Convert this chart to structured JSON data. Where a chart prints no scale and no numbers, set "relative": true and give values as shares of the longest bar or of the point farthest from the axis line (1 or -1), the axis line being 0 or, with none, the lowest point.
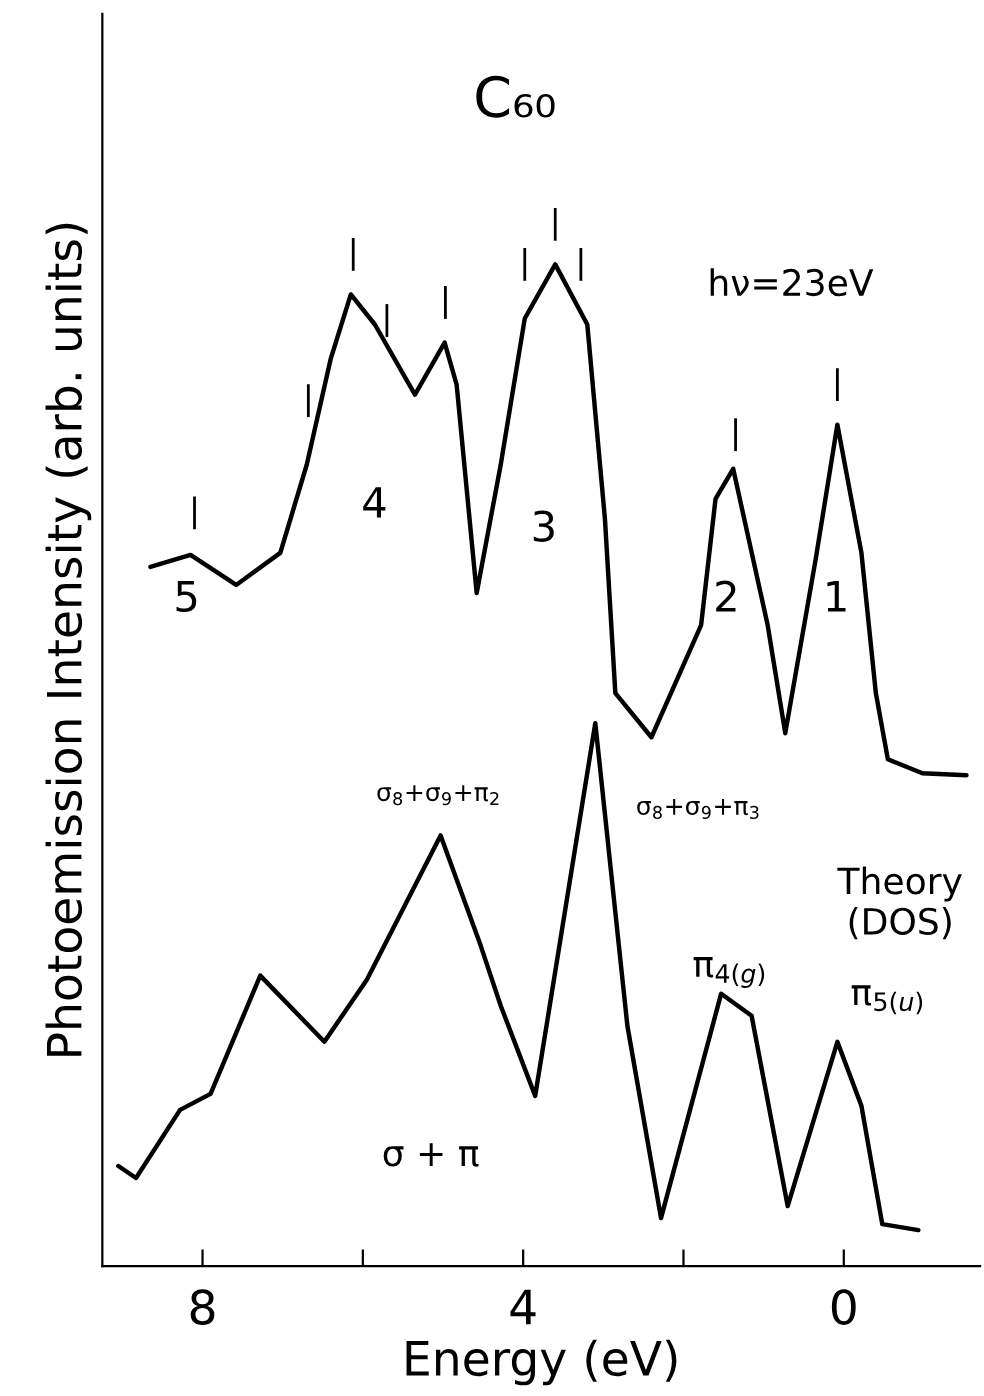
{
  "chart_data": {
    "type": "line",
    "title": "C₆₀",
    "xlabel": "Energy (eV)",
    "ylabel": "Photoemission Intensity (arb. units)",
    "relative": true,
    "xlim": [
      9.25,
      -1.7
    ],
    "xticks": [
      8,
      {
        "value": 6,
        "label": null
      },
      4,
      {
        "value": 2,
        "label": null
      },
      0
    ],
    "grid": false,
    "legend": false,
    "marker": "none",
    "line_style": "solid",
    "series": [
      {
        "color": "#000000",
        "x": [
          8.65,
          8.15,
          7.58,
          7.03,
          6.7,
          6.4,
          6.15,
          5.85,
          5.35,
          4.98,
          4.83,
          4.58,
          4.28,
          3.98,
          3.6,
          3.2,
          2.98,
          2.85,
          2.4,
          1.78,
          1.6,
          1.38,
          0.95,
          0.73,
          0.35,
          0.08,
          -0.22,
          -0.4,
          -0.55,
          -0.98,
          -1.53
        ],
        "values": [
          0.698,
          0.71,
          0.68,
          0.712,
          0.8,
          0.906,
          0.97,
          0.94,
          0.87,
          0.922,
          0.88,
          0.672,
          0.8,
          0.946,
          1.0,
          0.94,
          0.746,
          0.572,
          0.528,
          0.64,
          0.766,
          0.796,
          0.64,
          0.532,
          0.706,
          0.84,
          0.712,
          0.572,
          0.506,
          0.492,
          0.49
        ]
      },
      {
        "color": "#000000",
        "x": [
          9.05,
          8.83,
          8.28,
          7.9,
          7.28,
          6.48,
          5.95,
          5.03,
          4.53,
          4.28,
          3.85,
          3.1,
          2.7,
          2.28,
          1.53,
          1.15,
          0.7,
          0.08,
          -0.22,
          -0.48,
          -0.93
        ],
        "values": [
          0.1,
          0.088,
          0.156,
          0.172,
          0.29,
          0.224,
          0.286,
          0.43,
          0.32,
          0.26,
          0.17,
          0.542,
          0.24,
          0.048,
          0.272,
          0.25,
          0.06,
          0.224,
          0.16,
          0.042,
          0.036
        ]
      }
    ],
    "annotations": [
      "hν=23eV",
      "5",
      "4",
      "3",
      "2",
      "1",
      "σ$_{8}$+σ$_{9}$+π$_{2}$",
      "σ$_{8}$+σ$_{9}$+π$_{3}$",
      "Theory\n(DOS)",
      "π$_{4(g)}$",
      "π$_{5(u)}$",
      "σ + π"
    ]
  }
}
